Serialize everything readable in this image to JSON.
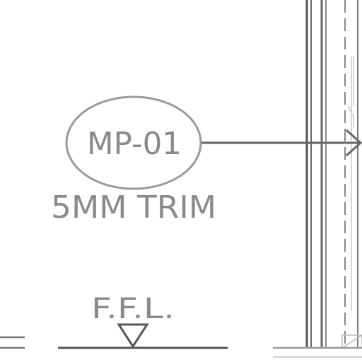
{
  "tag": {
    "code": "MP-01",
    "description": "5MM TRIM"
  },
  "level_marker": {
    "label": "F.F.L."
  },
  "colors": {
    "background": "#ffffff",
    "linework_dark": "#555555",
    "linework_mid": "#777777",
    "linework_light": "#9a9a9a",
    "text": "#8a8a8a"
  }
}
